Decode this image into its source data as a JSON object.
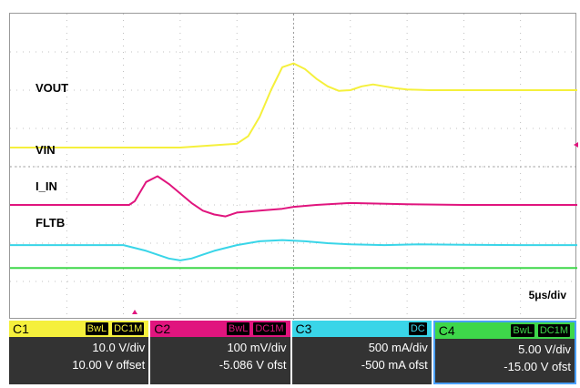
{
  "chart_data": {
    "type": "line",
    "timebase": "5μs/div",
    "x_divisions": 10,
    "y_divisions": 8,
    "grid": true,
    "x_unit": "μs",
    "xlim": [
      0,
      50
    ],
    "series": [
      {
        "name": "VOUT",
        "color": "#f5f03c",
        "x": [
          0,
          10,
          15,
          20,
          21,
          22,
          23,
          24,
          25,
          26,
          27,
          28,
          29,
          30,
          31,
          32,
          33,
          34,
          35,
          37,
          40,
          45,
          50
        ],
        "y": [
          4.5,
          4.5,
          4.5,
          4.6,
          4.8,
          5.3,
          6.0,
          6.6,
          6.7,
          6.55,
          6.3,
          6.1,
          5.98,
          6.0,
          6.1,
          6.15,
          6.1,
          6.05,
          6.02,
          6.0,
          6.0,
          6.0,
          6.0
        ]
      },
      {
        "name": "VIN",
        "color": "#e0157e",
        "x": [
          0,
          10.5,
          11,
          12,
          13,
          14,
          15,
          16,
          17,
          18,
          19,
          20,
          22,
          24,
          25,
          27,
          30,
          35,
          40,
          45,
          50
        ],
        "y": [
          3.0,
          3.0,
          3.1,
          3.6,
          3.75,
          3.55,
          3.3,
          3.05,
          2.85,
          2.75,
          2.7,
          2.8,
          2.85,
          2.9,
          2.95,
          3.0,
          3.05,
          3.02,
          3.0,
          3.0,
          3.0
        ]
      },
      {
        "name": "I_IN",
        "color": "#39d5e8",
        "x": [
          0,
          10,
          12,
          14,
          15,
          16,
          17,
          18,
          20,
          22,
          24,
          26,
          28,
          30,
          33,
          36,
          40,
          45,
          50
        ],
        "y": [
          1.95,
          1.95,
          1.8,
          1.6,
          1.55,
          1.6,
          1.7,
          1.8,
          1.95,
          2.05,
          2.08,
          2.05,
          2.0,
          1.97,
          1.95,
          1.97,
          1.96,
          1.95,
          1.95
        ]
      },
      {
        "name": "FLTB",
        "color": "#3ed74a",
        "x": [
          0,
          50
        ],
        "y": [
          1.35,
          1.35
        ]
      }
    ]
  },
  "labels": {
    "vout": "VOUT",
    "vin": "VIN",
    "iin": "I_IN",
    "fltb": "FLTB"
  },
  "channels": [
    {
      "id": "C1",
      "color": "#f5f03c",
      "tags": [
        "BwL",
        "DC1M"
      ],
      "scale": "10.0 V/div",
      "offset": "10.00 V offset",
      "selected": false
    },
    {
      "id": "C2",
      "color": "#e0157e",
      "tags": [
        "BwL",
        "DC1M"
      ],
      "scale": "100 mV/div",
      "offset": "-5.086 V ofst",
      "selected": false
    },
    {
      "id": "C3",
      "color": "#39d5e8",
      "tags": [
        "DC"
      ],
      "scale": "500 mA/div",
      "offset": "-500 mA ofst",
      "selected": false
    },
    {
      "id": "C4",
      "color": "#3ed74a",
      "tags": [
        "BwL",
        "DC1M"
      ],
      "scale": "5.00 V/div",
      "offset": "-15.00 V ofst",
      "selected": true
    }
  ]
}
